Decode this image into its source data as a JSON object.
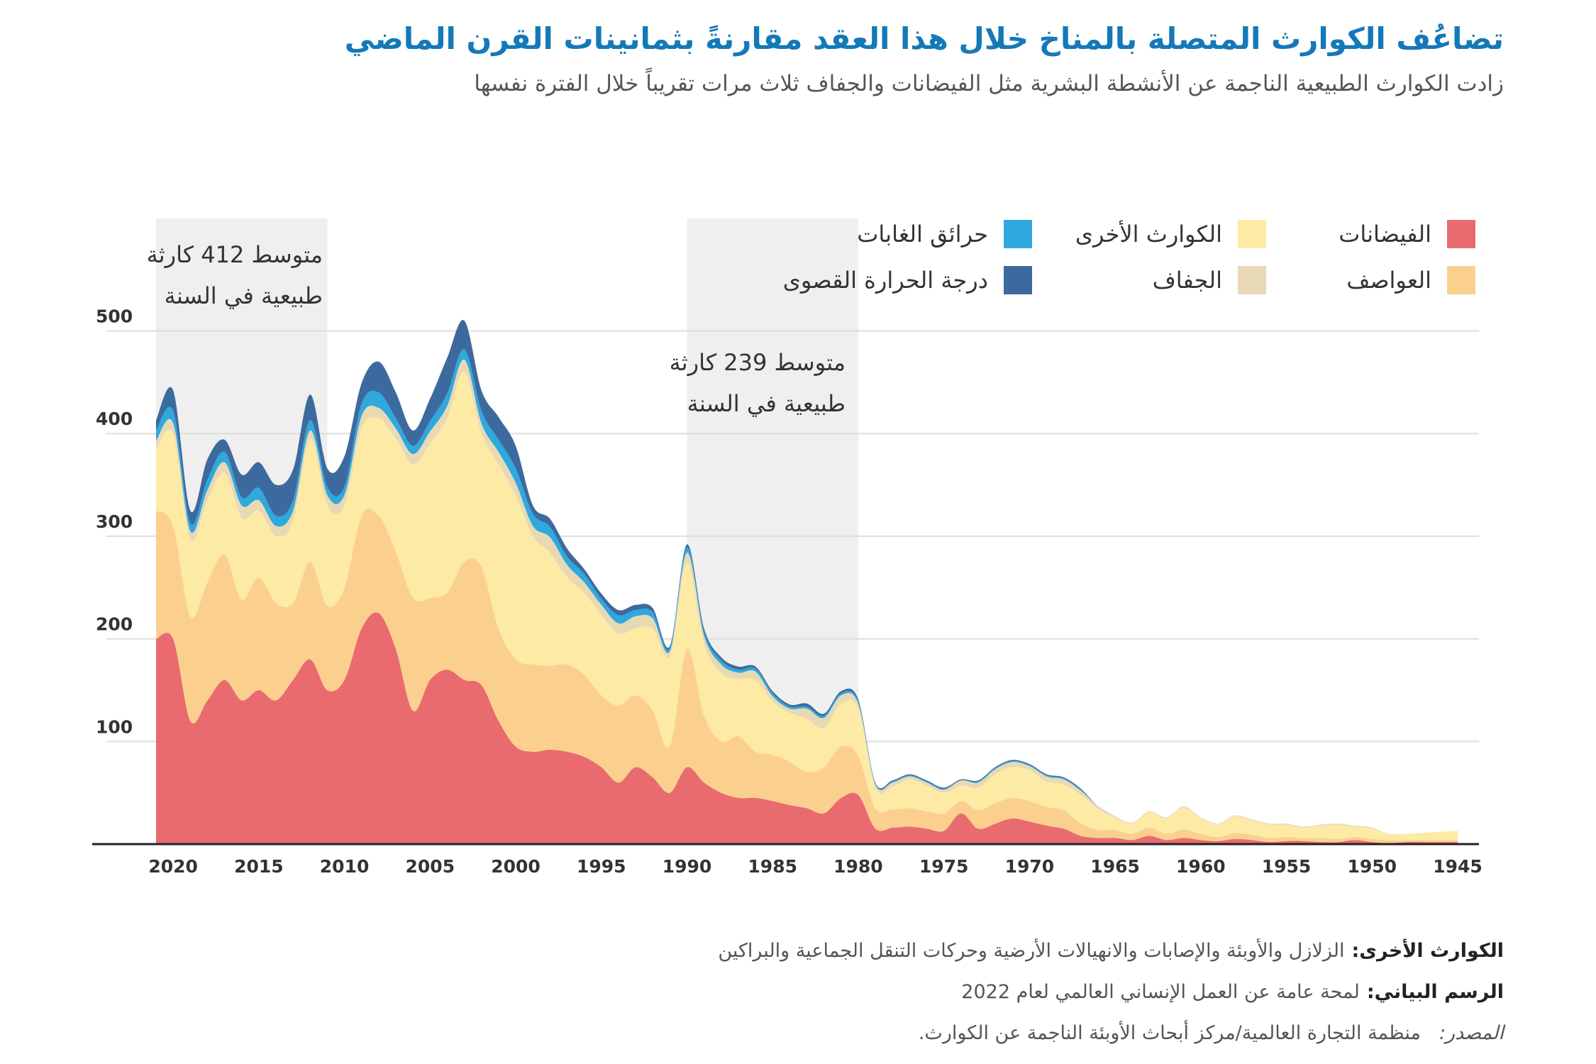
{
  "title": "تضاعُف الكوارث المتصلة بالمناخ خلال هذا العقد مقارنةً بثمانينات القرن الماضي",
  "subtitle": "زادت الكوارث الطبيعية الناجمة عن الأنشطة البشرية مثل الفيضانات والجفاف ثلاث مرات تقريباً خلال الفترة نفسها",
  "legend": {
    "floods": "الفيضانات",
    "other": "الكوارث الأخرى",
    "wildfires": "حرائق الغابات",
    "storms": "العواصف",
    "drought": "الجفاف",
    "extreme_temp": "درجة الحرارة القصوى"
  },
  "annotations": {
    "recent_line1": "متوسط 412 كارثة",
    "recent_line2": "طبيعية في السنة",
    "eighties_line1": "متوسط 239 كارثة",
    "eighties_line2": "طبيعية في السنة"
  },
  "footer": {
    "other_label": "الكوارث الأخرى:",
    "other_text": "الزلازل والأوبئة والإصابات والانهيالات الأرضية وحركات التنقل الجماعية والبراكين",
    "graphic_label": "الرسم البياني:",
    "graphic_text": "لمحة عامة عن العمل الإنساني العالمي لعام 2022",
    "source_label": "المصدر:",
    "source_text": "منظمة التجارة العالمية/مركز أبحاث الأوبئة الناجمة عن الكوارث."
  },
  "colors": {
    "floods": "#e96b70",
    "storms": "#fbd08e",
    "other": "#fdeaa5",
    "drought": "#e8d9b5",
    "wildfires": "#2fa8de",
    "extreme_temp": "#3d6a9e",
    "highlight": "#efefef",
    "grid": "#dddddd"
  },
  "chart_data": {
    "type": "area",
    "stacked": true,
    "x_axis_reversed": true,
    "x": [
      2021,
      2020,
      2019,
      2018,
      2017,
      2016,
      2015,
      2014,
      2013,
      2012,
      2011,
      2010,
      2009,
      2008,
      2007,
      2006,
      2005,
      2004,
      2003,
      2002,
      2001,
      2000,
      1999,
      1998,
      1997,
      1996,
      1995,
      1994,
      1993,
      1992,
      1991,
      1990,
      1989,
      1988,
      1987,
      1986,
      1985,
      1984,
      1983,
      1982,
      1981,
      1980,
      1979,
      1978,
      1977,
      1976,
      1975,
      1974,
      1973,
      1972,
      1971,
      1970,
      1969,
      1968,
      1967,
      1966,
      1965,
      1964,
      1963,
      1962,
      1961,
      1960,
      1959,
      1958,
      1957,
      1956,
      1955,
      1954,
      1953,
      1952,
      1951,
      1950,
      1949,
      1948,
      1947,
      1946,
      1945
    ],
    "xticks": [
      2020,
      2015,
      2010,
      2005,
      2000,
      1995,
      1990,
      1985,
      1980,
      1975,
      1970,
      1965,
      1960,
      1955,
      1950,
      1945
    ],
    "ylim": [
      0,
      550
    ],
    "yticks": [
      100,
      200,
      300,
      400,
      500
    ],
    "highlight_ranges": [
      [
        2011,
        2021
      ],
      [
        1980,
        1990
      ]
    ],
    "series": [
      {
        "name": "الفيضانات",
        "key": "floods",
        "values": [
          200,
          200,
          120,
          140,
          160,
          140,
          150,
          140,
          160,
          180,
          150,
          160,
          210,
          225,
          190,
          130,
          160,
          170,
          160,
          155,
          120,
          95,
          90,
          92,
          90,
          85,
          75,
          60,
          75,
          65,
          50,
          75,
          60,
          50,
          45,
          45,
          42,
          38,
          35,
          30,
          45,
          48,
          15,
          16,
          17,
          15,
          13,
          30,
          15,
          20,
          25,
          22,
          18,
          15,
          8,
          6,
          6,
          4,
          8,
          4,
          6,
          4,
          3,
          5,
          4,
          2,
          3,
          3,
          2,
          2,
          4,
          2,
          1,
          2,
          2,
          2,
          2
        ],
        "legend_note": null
      },
      {
        "name": "العواصف",
        "key": "storms",
        "values": [
          125,
          110,
          102,
          115,
          122,
          98,
          110,
          95,
          75,
          95,
          82,
          90,
          110,
          95,
          95,
          110,
          80,
          75,
          115,
          115,
          90,
          85,
          85,
          82,
          85,
          80,
          70,
          75,
          70,
          65,
          45,
          115,
          65,
          50,
          60,
          45,
          45,
          42,
          35,
          45,
          50,
          38,
          20,
          18,
          18,
          17,
          17,
          12,
          18,
          20,
          20,
          20,
          18,
          18,
          12,
          8,
          8,
          6,
          8,
          6,
          8,
          6,
          4,
          6,
          5,
          4,
          4,
          3,
          4,
          3,
          3,
          3,
          3,
          2,
          2,
          2,
          2
        ]
      },
      {
        "name": "الكوارث الأخرى",
        "key": "other",
        "values": [
          60,
          90,
          75,
          80,
          80,
          80,
          65,
          65,
          80,
          120,
          98,
          80,
          85,
          95,
          110,
          130,
          150,
          170,
          185,
          130,
          160,
          160,
          125,
          110,
          85,
          80,
          78,
          70,
          65,
          80,
          88,
          84,
          70,
          67,
          56,
          70,
          52,
          48,
          52,
          38,
          42,
          46,
          20,
          22,
          28,
          25,
          20,
          15,
          22,
          28,
          30,
          30,
          25,
          25,
          28,
          20,
          12,
          10,
          15,
          15,
          22,
          15,
          12,
          16,
          14,
          13,
          12,
          10,
          12,
          14,
          10,
          10,
          6,
          6,
          7,
          8,
          9
        ]
      },
      {
        "name": "الجفاف",
        "key": "drought",
        "values": [
          8,
          10,
          8,
          10,
          10,
          12,
          10,
          10,
          10,
          8,
          10,
          10,
          12,
          10,
          10,
          10,
          12,
          12,
          12,
          10,
          12,
          12,
          10,
          15,
          12,
          10,
          10,
          10,
          12,
          10,
          5,
          10,
          8,
          8,
          6,
          8,
          5,
          4,
          10,
          10,
          8,
          5,
          3,
          4,
          3,
          3,
          3,
          5,
          5,
          5,
          5,
          4,
          5,
          5,
          4,
          3,
          1,
          1,
          1,
          1,
          1,
          1,
          1,
          1,
          1,
          1,
          1,
          1,
          1,
          1,
          1,
          1,
          0,
          0,
          0,
          0,
          0
        ]
      },
      {
        "name": "حرائق الغابات",
        "key": "wildfires",
        "values": [
          10,
          12,
          8,
          10,
          10,
          8,
          12,
          10,
          10,
          10,
          8,
          8,
          12,
          15,
          10,
          8,
          10,
          12,
          10,
          12,
          12,
          14,
          12,
          10,
          8,
          8,
          6,
          8,
          6,
          6,
          3,
          5,
          4,
          4,
          3,
          3,
          3,
          2,
          2,
          2,
          2,
          2,
          1,
          1,
          1,
          1,
          1,
          0,
          1,
          1,
          1,
          1,
          1,
          1,
          1,
          0,
          0,
          0,
          0,
          0,
          0,
          0,
          0,
          0,
          0,
          0,
          0,
          0,
          0,
          0,
          0,
          0,
          0,
          0,
          0,
          0,
          0
        ]
      },
      {
        "name": "درجة الحرارة القصوى",
        "key": "extreme_temp",
        "values": [
          10,
          20,
          12,
          20,
          12,
          22,
          25,
          30,
          30,
          25,
          18,
          30,
          20,
          30,
          25,
          15,
          22,
          35,
          28,
          20,
          22,
          22,
          8,
          8,
          8,
          5,
          5,
          5,
          5,
          4,
          2,
          3,
          3,
          3,
          3,
          2,
          2,
          2,
          3,
          2,
          2,
          2,
          1,
          1,
          1,
          1,
          1,
          1,
          1,
          1,
          1,
          1,
          1,
          1,
          1,
          0,
          0,
          0,
          0,
          0,
          0,
          0,
          0,
          0,
          0,
          0,
          0,
          0,
          0,
          0,
          0,
          0,
          0,
          0,
          0,
          0,
          0
        ]
      }
    ]
  }
}
